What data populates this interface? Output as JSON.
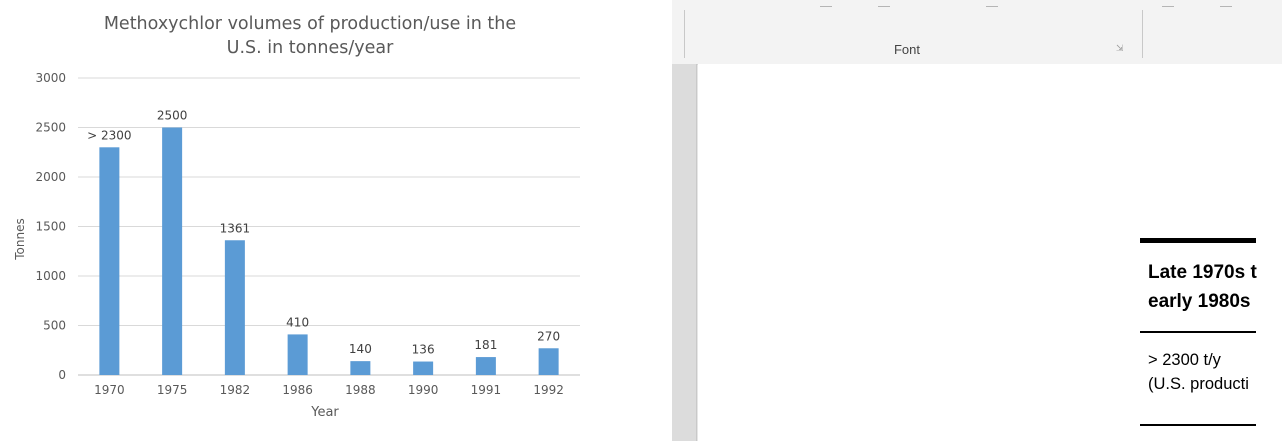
{
  "chart_data": {
    "type": "bar",
    "title": "Methoxychlor volumes of production/use in the\nU.S. in tonnes/year",
    "xlabel": "Year",
    "ylabel": "Tonnes",
    "categories": [
      "1970",
      "1975",
      "1982",
      "1986",
      "1988",
      "1990",
      "1991",
      "1992"
    ],
    "values": [
      2300,
      2500,
      1361,
      410,
      140,
      136,
      181,
      270
    ],
    "data_labels": [
      "> 2300",
      "2500",
      "1361",
      "410",
      "140",
      "136",
      "181",
      "270"
    ],
    "yticks": [
      "0",
      "500",
      "1000",
      "1500",
      "2000",
      "2500",
      "3000"
    ],
    "ylim": [
      0,
      3000
    ],
    "grid": true,
    "legend": "none",
    "bar_color": "#5b9bd5"
  },
  "word_document": {
    "ribbon": {
      "group_label": "Font"
    },
    "table": {
      "header": "Late 1970s t\nearly 1980s",
      "cell": "> 2300 t/y\n(U.S. producti"
    }
  }
}
